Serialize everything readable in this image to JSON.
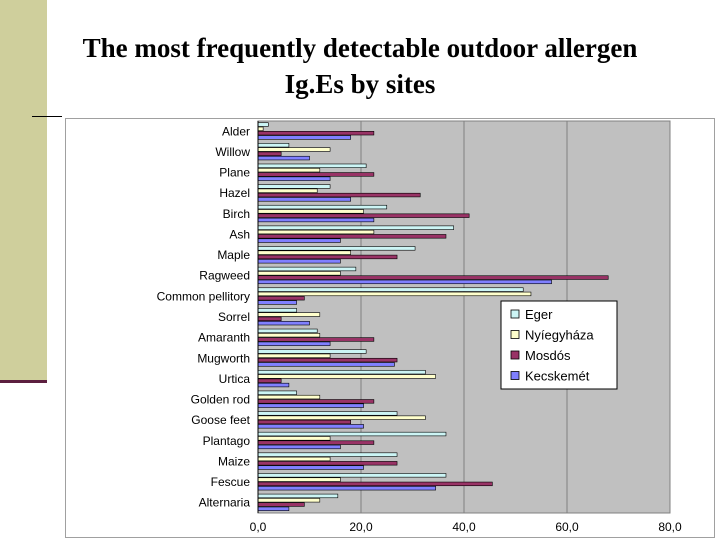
{
  "slide": {
    "title_line1": "The most frequently detectable outdoor allergen",
    "title_line2": "Ig.Es by sites"
  },
  "chart_data": {
    "type": "bar",
    "orientation": "horizontal",
    "title": "The most frequently detectable outdoor allergen Ig.Es by sites",
    "xlabel": "",
    "ylabel": "",
    "xlim": [
      0,
      80
    ],
    "x_ticks": [
      "0,0",
      "20,0",
      "40,0",
      "60,0",
      "80,0"
    ],
    "grid": true,
    "legend_position": "right",
    "categories": [
      "Alder",
      "Willow",
      "Plane",
      "Hazel",
      "Birch",
      "Ash",
      "Maple",
      "Ragweed",
      "Common pellitory",
      "Sorrel",
      "Amaranth",
      "Mugworth",
      "Urtica",
      "Golden rod",
      "Goose feet",
      "Plantago",
      "Maize",
      "Fescue",
      "Alternaria"
    ],
    "series": [
      {
        "name": "Eger",
        "color": "#ccf5f5",
        "values": [
          2,
          6,
          21,
          14,
          25,
          38,
          30.5,
          19,
          51.5,
          7.5,
          11.5,
          21,
          32.5,
          7.5,
          27,
          36.5,
          27,
          36.5,
          15.5
        ]
      },
      {
        "name": "Nyíegyháza",
        "color": "#ffffcc",
        "values": [
          1,
          14,
          12,
          11.5,
          20.5,
          22.5,
          18,
          16,
          53,
          12,
          12,
          14,
          34.5,
          12,
          32.5,
          14,
          14,
          16,
          12
        ]
      },
      {
        "name": "Mosdós",
        "color": "#993366",
        "values": [
          22.5,
          4.5,
          22.5,
          31.5,
          41,
          36.5,
          27,
          68,
          9,
          4.5,
          22.5,
          27,
          4.5,
          22.5,
          18,
          22.5,
          27,
          45.5,
          9
        ]
      },
      {
        "name": "Kecskemét",
        "color": "#8080ff",
        "values": [
          18,
          10,
          14,
          18,
          22.5,
          16,
          16,
          57,
          7.5,
          10,
          14,
          26.5,
          6,
          20.5,
          20.5,
          16,
          20.5,
          34.5,
          6
        ]
      }
    ]
  }
}
